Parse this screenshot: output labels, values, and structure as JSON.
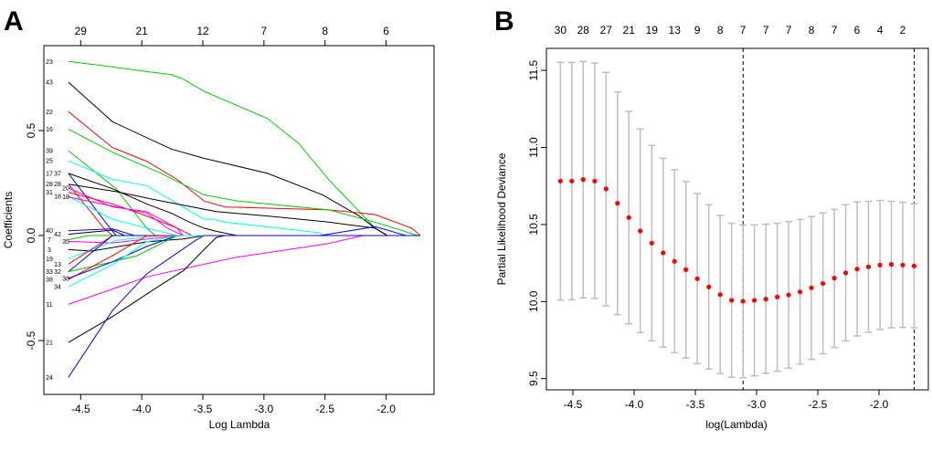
{
  "chart_data": [
    {
      "panel_label": "A",
      "type": "line",
      "xlabel": "Log Lambda",
      "ylabel": "Coefficients",
      "xlim": [
        -4.6,
        -1.72
      ],
      "ylim": [
        -0.72,
        0.86
      ],
      "x_ticks": [
        -4.5,
        -4.0,
        -3.5,
        -3.0,
        -2.5,
        -2.0
      ],
      "x_tick_labels": [
        "-4.5",
        "-4.0",
        "-3.5",
        "-3.0",
        "-2.5",
        "-2.0"
      ],
      "y_ticks": [
        -0.5,
        0.0,
        0.5
      ],
      "y_tick_labels": [
        "-0.5",
        "0.0",
        "0.5"
      ],
      "top_axis": {
        "at": [
          -4.5,
          -4.0,
          -3.5,
          -3.0,
          -2.5,
          -2.0
        ],
        "labels": [
          "29",
          "21",
          "12",
          "7",
          "8",
          "6"
        ]
      },
      "grid": false,
      "series": [
        {
          "label": "23",
          "color": "#00cd00",
          "points": [
            [
              -4.6,
              0.829
            ],
            [
              -4.24,
              0.803
            ],
            [
              -3.96,
              0.781
            ],
            [
              -3.76,
              0.767
            ],
            [
              -3.66,
              0.745
            ],
            [
              -3.49,
              0.687
            ],
            [
              -2.97,
              0.557
            ],
            [
              -2.72,
              0.441
            ],
            [
              -2.47,
              0.267
            ],
            [
              -2.09,
              0.035
            ],
            [
              -1.99,
              0
            ]
          ]
        },
        {
          "label": "43",
          "color": "#000000",
          "points": [
            [
              -4.6,
              0.73
            ],
            [
              -4.24,
              0.542
            ],
            [
              -3.76,
              0.412
            ],
            [
              -3.49,
              0.368
            ],
            [
              -2.97,
              0.296
            ],
            [
              -2.52,
              0.194
            ],
            [
              -2.22,
              0.093
            ],
            [
              -2.09,
              0.035
            ],
            [
              -1.99,
              0
            ]
          ]
        },
        {
          "label": "22",
          "color": "#ff0000",
          "points": [
            [
              -4.6,
              0.59
            ],
            [
              -4.24,
              0.419
            ],
            [
              -3.96,
              0.354
            ],
            [
              -3.71,
              0.267
            ],
            [
              -3.49,
              0.165
            ],
            [
              -3.32,
              0.136
            ],
            [
              -2.47,
              0.122
            ],
            [
              -2.09,
              0.1
            ],
            [
              -1.79,
              0.035
            ],
            [
              -1.72,
              0
            ]
          ]
        },
        {
          "label": "16",
          "color": "#00cd00",
          "points": [
            [
              -4.6,
              0.506
            ],
            [
              -4.24,
              0.397
            ],
            [
              -3.84,
              0.296
            ],
            [
              -3.49,
              0.194
            ],
            [
              -3.22,
              0.165
            ],
            [
              -2.47,
              0.122
            ],
            [
              -2.09,
              0.064
            ],
            [
              -1.74,
              0
            ]
          ]
        },
        {
          "label": "39",
          "color": "#00cd00",
          "points": [
            [
              -4.6,
              0.404
            ],
            [
              -4.46,
              0.339
            ],
            [
              -4.21,
              0.223
            ],
            [
              -3.96,
              0.035
            ],
            [
              -3.89,
              0
            ]
          ]
        },
        {
          "label": "25",
          "color": "#00ffff",
          "points": [
            [
              -4.6,
              0.357
            ],
            [
              -4.24,
              0.267
            ],
            [
              -3.96,
              0.238
            ],
            [
              -3.49,
              0.078
            ],
            [
              -3.41,
              0.078
            ],
            [
              -3.32,
              0.064
            ],
            [
              -2.54,
              0.013
            ],
            [
              -2.52,
              0
            ]
          ]
        },
        {
          "label": "17",
          "color": "#0000ff",
          "points": [
            [
              -4.6,
              0.296
            ],
            [
              -4.26,
              0.035
            ],
            [
              -4.21,
              0
            ]
          ]
        },
        {
          "label": "37",
          "color": "#000000",
          "points": [
            [
              -4.6,
              0.296
            ],
            [
              -4.24,
              0.223
            ],
            [
              -3.96,
              0.151
            ],
            [
              -3.76,
              0.107
            ],
            [
              -3.61,
              0.064
            ],
            [
              -3.49,
              0.035
            ],
            [
              -3.39,
              0.02
            ],
            [
              -3.22,
              0
            ]
          ]
        },
        {
          "label": "28",
          "color": "#000000",
          "points": [
            [
              -4.6,
              0.245
            ],
            [
              -4.21,
              0.209
            ],
            [
              -3.84,
              0.165
            ],
            [
              -3.39,
              0.114
            ],
            [
              -2.97,
              0.093
            ],
            [
              -2.47,
              0.064
            ],
            [
              -2.09,
              0.035
            ],
            [
              -1.99,
              0
            ]
          ]
        },
        {
          "label": "28",
          "color": "#ff0000",
          "points": [
            [
              -4.6,
              0.245
            ],
            [
              -4.31,
              0.035
            ],
            [
              -4.24,
              0
            ]
          ]
        },
        {
          "label": "20",
          "color": "#ff00ff",
          "points": [
            [
              -4.6,
              0.226
            ],
            [
              -4.24,
              0.136
            ],
            [
              -3.96,
              0.114
            ],
            [
              -3.71,
              0.035
            ],
            [
              -3.66,
              0
            ]
          ]
        },
        {
          "label": "31",
          "color": "#ff0000",
          "points": [
            [
              -4.6,
              0.206
            ],
            [
              -4.24,
              0.151
            ],
            [
              -3.96,
              0.093
            ],
            [
              -3.71,
              0.035
            ],
            [
              -3.59,
              0
            ]
          ]
        },
        {
          "label": "18",
          "color": "#00ffff",
          "points": [
            [
              -4.6,
              0.187
            ],
            [
              -4.24,
              0.078
            ],
            [
              -3.96,
              0.035
            ],
            [
              -3.71,
              0
            ]
          ]
        },
        {
          "label": "18",
          "color": "#ff00ff",
          "points": [
            [
              -4.6,
              0.184
            ],
            [
              -3.96,
              0.107
            ],
            [
              -3.79,
              0.035
            ],
            [
              -3.66,
              0
            ]
          ]
        },
        {
          "label": "40",
          "color": "#0000ff",
          "points": [
            [
              -4.6,
              0.023
            ],
            [
              -4.24,
              0.032
            ],
            [
              -4.06,
              0
            ]
          ]
        },
        {
          "label": "42",
          "color": "#000000",
          "points": [
            [
              -4.6,
              0.006
            ],
            [
              -4.24,
              0.026
            ],
            [
              -4.14,
              0
            ]
          ]
        },
        {
          "label": "7",
          "color": "#00cd00",
          "points": [
            [
              -4.6,
              -0.02
            ],
            [
              -4.44,
              0
            ]
          ]
        },
        {
          "label": "35",
          "color": "#ff00ff",
          "points": [
            [
              -4.6,
              -0.028
            ],
            [
              -4.24,
              -0.035
            ],
            [
              -3.84,
              -0.009
            ],
            [
              -3.66,
              0
            ],
            [
              -1.72,
              0
            ]
          ]
        },
        {
          "label": "3",
          "color": "#000000",
          "points": [
            [
              -4.6,
              -0.067
            ],
            [
              -4.41,
              -0.074
            ],
            [
              -3.96,
              -0.03
            ],
            [
              -3.66,
              -0.016
            ],
            [
              -3.49,
              0
            ]
          ]
        },
        {
          "label": "19",
          "color": "#00ffff",
          "points": [
            [
              -4.6,
              -0.11
            ],
            [
              -4.21,
              -0.023
            ],
            [
              -3.84,
              0
            ]
          ]
        },
        {
          "label": "13",
          "color": "#ff0000",
          "points": [
            [
              -4.6,
              -0.136
            ],
            [
              -4.24,
              -0.001
            ],
            [
              -4.21,
              0
            ]
          ]
        },
        {
          "label": "33",
          "color": "#0000ff",
          "points": [
            [
              -4.6,
              -0.172
            ],
            [
              -4.24,
              0
            ]
          ]
        },
        {
          "label": "32",
          "color": "#00cd00",
          "points": [
            [
              -4.6,
              -0.172
            ],
            [
              -4.24,
              -0.125
            ],
            [
              -4.04,
              -0.096
            ],
            [
              -3.71,
              0
            ]
          ]
        },
        {
          "label": "38",
          "color": "#ff0000",
          "points": [
            [
              -4.6,
              -0.209
            ],
            [
              -4.24,
              -0.096
            ],
            [
              -3.96,
              -0.001
            ],
            [
              -3.59,
              0
            ]
          ]
        },
        {
          "label": "38",
          "color": "#0000ff",
          "points": [
            [
              -4.6,
              -0.204
            ],
            [
              -4.24,
              -0.125
            ],
            [
              -3.96,
              -0.052
            ],
            [
              -3.71,
              0
            ]
          ]
        },
        {
          "label": "34",
          "color": "#00ffff",
          "points": [
            [
              -4.6,
              -0.243
            ],
            [
              -4.24,
              -0.139
            ],
            [
              -3.96,
              -0.03
            ],
            [
              -3.71,
              0
            ]
          ]
        },
        {
          "label": "11",
          "color": "#ff00ff",
          "points": [
            [
              -4.6,
              -0.328
            ],
            [
              -4.24,
              -0.255
            ],
            [
              -3.96,
              -0.197
            ],
            [
              -3.51,
              -0.139
            ],
            [
              -3.22,
              -0.103
            ],
            [
              -2.47,
              -0.038
            ],
            [
              -2.19,
              0
            ]
          ]
        },
        {
          "label": "21",
          "color": "#000000",
          "points": [
            [
              -4.6,
              -0.509
            ],
            [
              -4.24,
              -0.386
            ],
            [
              -3.86,
              -0.241
            ],
            [
              -3.66,
              -0.168
            ],
            [
              -3.49,
              -0.067
            ],
            [
              -3.39,
              -0.009
            ],
            [
              -3.32,
              0
            ]
          ]
        },
        {
          "label": "24",
          "color": "#0000ff",
          "points": [
            [
              -4.6,
              -0.675
            ],
            [
              -4.24,
              -0.357
            ],
            [
              -3.96,
              -0.183
            ],
            [
              -3.56,
              -0.023
            ],
            [
              -3.49,
              0
            ]
          ]
        },
        {
          "label": "",
          "color": "#0000ff",
          "points": [
            [
              -2.54,
              0
            ],
            [
              -2.09,
              0.042
            ],
            [
              -1.99,
              0.026
            ],
            [
              -1.84,
              0
            ]
          ]
        }
      ]
    },
    {
      "panel_label": "B",
      "type": "scatter",
      "xlabel": "log(Lambda)",
      "ylabel": "Partial Likelihood Deviance",
      "xlim": [
        -4.72,
        -1.59
      ],
      "ylim": [
        9.45,
        11.65
      ],
      "x_ticks": [
        -4.5,
        -4.0,
        -3.5,
        -3.0,
        -2.5,
        -2.0
      ],
      "x_tick_labels": [
        "-4.5",
        "-4.0",
        "-3.5",
        "-3.0",
        "-2.5",
        "-2.0"
      ],
      "y_ticks": [
        9.5,
        10.0,
        10.5,
        11.0,
        11.5
      ],
      "y_tick_labels": [
        "9.5",
        "10.0",
        "10.5",
        "11.0",
        "11.5"
      ],
      "top_axis_labels": [
        "30",
        "28",
        "27",
        "21",
        "19",
        "13",
        "9",
        "8",
        "7",
        "7",
        "7",
        "8",
        "7",
        "6",
        "4",
        "2"
      ],
      "grid": false,
      "point_color": "#ff0000",
      "errorbar_color": "#bebebe",
      "vlines": [
        -3.11,
        -1.713
      ],
      "x": [
        -4.602,
        -4.509,
        -4.416,
        -4.322,
        -4.229,
        -4.136,
        -4.043,
        -3.95,
        -3.856,
        -3.763,
        -3.67,
        -3.577,
        -3.484,
        -3.39,
        -3.297,
        -3.204,
        -3.111,
        -3.018,
        -2.924,
        -2.831,
        -2.738,
        -2.645,
        -2.552,
        -2.458,
        -2.365,
        -2.272,
        -2.179,
        -2.086,
        -1.992,
        -1.899,
        -1.806,
        -1.713
      ],
      "mean": [
        10.782,
        10.782,
        10.792,
        10.782,
        10.731,
        10.638,
        10.545,
        10.458,
        10.379,
        10.316,
        10.261,
        10.207,
        10.148,
        10.095,
        10.045,
        10.008,
        10.002,
        10.008,
        10.016,
        10.03,
        10.043,
        10.063,
        10.089,
        10.117,
        10.152,
        10.186,
        10.211,
        10.225,
        10.237,
        10.241,
        10.237,
        10.231
      ],
      "upper": [
        11.552,
        11.552,
        11.558,
        11.548,
        11.487,
        11.36,
        11.234,
        11.12,
        11.013,
        10.93,
        10.855,
        10.778,
        10.701,
        10.628,
        10.559,
        10.508,
        10.496,
        10.498,
        10.502,
        10.508,
        10.519,
        10.533,
        10.551,
        10.575,
        10.598,
        10.628,
        10.646,
        10.65,
        10.656,
        10.65,
        10.644,
        10.634
      ],
      "lower": [
        10.01,
        10.012,
        10.024,
        10.02,
        9.972,
        9.915,
        9.856,
        9.799,
        9.745,
        9.704,
        9.668,
        9.633,
        9.597,
        9.562,
        9.532,
        9.508,
        9.506,
        9.518,
        9.534,
        9.548,
        9.568,
        9.595,
        9.625,
        9.661,
        9.702,
        9.745,
        9.777,
        9.801,
        9.82,
        9.83,
        9.832,
        9.83
      ]
    }
  ]
}
